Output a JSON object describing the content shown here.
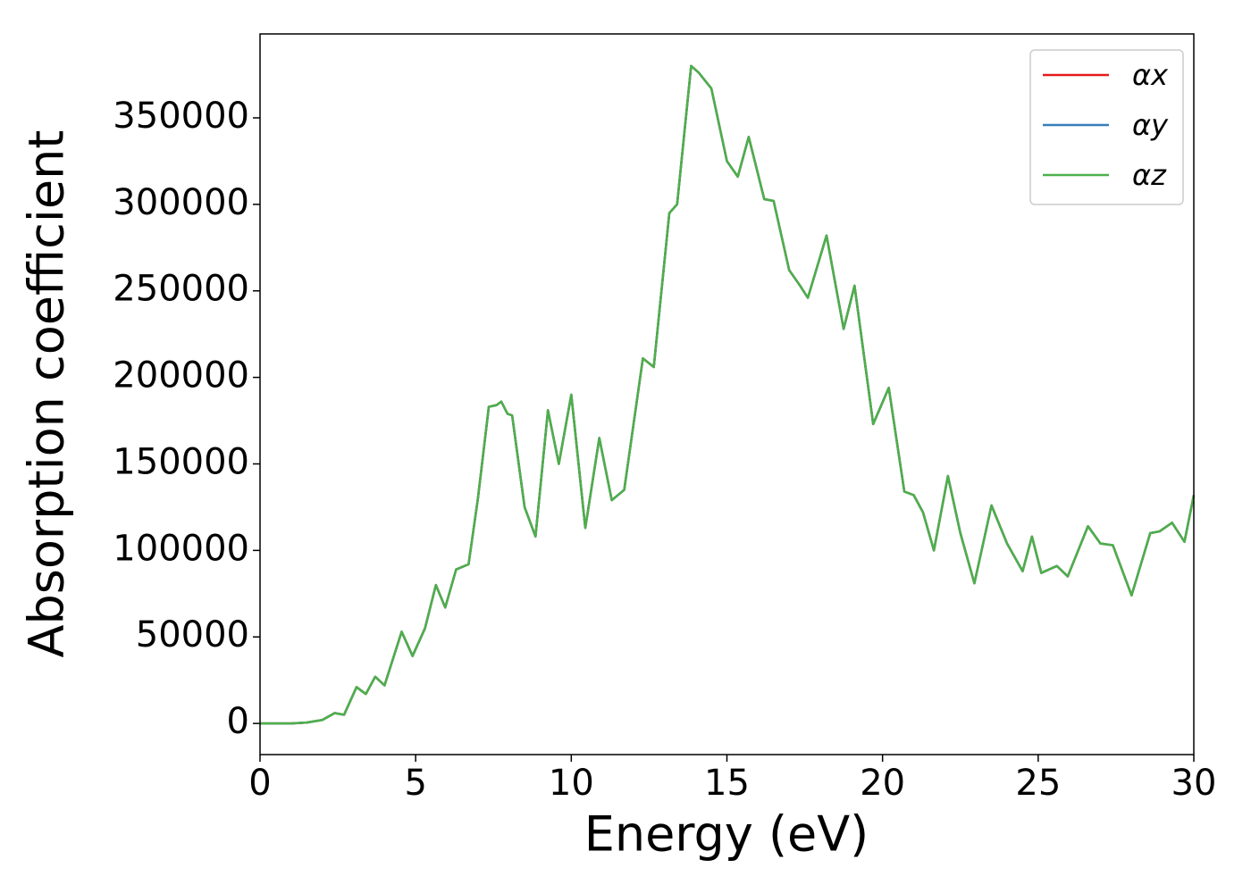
{
  "chart_data": {
    "type": "line",
    "x_label": "Energy (eV)",
    "y_label": "Absorption coefficient",
    "xlim": [
      0,
      30
    ],
    "ylim": [
      -18000,
      398500
    ],
    "xticks": [
      0,
      5,
      10,
      15,
      20,
      25,
      30
    ],
    "yticks": [
      0,
      50000,
      100000,
      150000,
      200000,
      250000,
      300000,
      350000
    ],
    "legend": "upper right",
    "grid": false,
    "x": [
      0,
      0.5,
      1.0,
      1.5,
      2.0,
      2.4,
      2.7,
      3.1,
      3.4,
      3.7,
      4.0,
      4.55,
      4.9,
      5.3,
      5.65,
      5.95,
      6.3,
      6.7,
      7.0,
      7.35,
      7.6,
      7.75,
      7.95,
      8.1,
      8.5,
      8.85,
      9.25,
      9.6,
      10.0,
      10.45,
      10.9,
      11.3,
      11.7,
      12.3,
      12.65,
      13.15,
      13.4,
      13.85,
      14.1,
      14.5,
      15.0,
      15.35,
      15.7,
      16.2,
      16.5,
      17.0,
      17.35,
      17.6,
      18.2,
      18.75,
      19.1,
      19.7,
      20.2,
      20.7,
      21.0,
      21.3,
      21.65,
      22.1,
      22.5,
      22.95,
      23.5,
      24.0,
      24.5,
      24.8,
      25.1,
      25.6,
      25.95,
      26.6,
      27.0,
      27.4,
      28.0,
      28.6,
      28.9,
      29.3,
      29.7,
      30.0
    ],
    "series": [
      {
        "name": "αx",
        "color": "#e41a1c",
        "values": [
          0,
          0,
          0,
          500,
          2000,
          6000,
          5000,
          21000,
          17000,
          27000,
          22000,
          53000,
          39000,
          55000,
          80000,
          67000,
          89000,
          92000,
          130000,
          183000,
          184000,
          186000,
          179000,
          178000,
          125000,
          108000,
          181000,
          150000,
          190000,
          113000,
          165000,
          129000,
          135000,
          211000,
          206000,
          295000,
          300000,
          380000,
          376000,
          367000,
          325000,
          316000,
          339000,
          303000,
          302000,
          262000,
          253000,
          246000,
          282000,
          228000,
          253000,
          173000,
          194000,
          134000,
          132000,
          122000,
          100000,
          143000,
          110000,
          81000,
          126000,
          104000,
          88000,
          108000,
          87000,
          91000,
          85000,
          114000,
          104000,
          103000,
          74000,
          110000,
          111000,
          116000,
          105000,
          132000
        ]
      },
      {
        "name": "αy",
        "color": "#377eb8",
        "values": [
          0,
          0,
          0,
          500,
          2000,
          6000,
          5000,
          21000,
          17000,
          27000,
          22000,
          53000,
          39000,
          55000,
          80000,
          67000,
          89000,
          92000,
          130000,
          183000,
          184000,
          186000,
          179000,
          178000,
          125000,
          108000,
          181000,
          150000,
          190000,
          113000,
          165000,
          129000,
          135000,
          211000,
          206000,
          295000,
          300000,
          380000,
          376000,
          367000,
          325000,
          316000,
          339000,
          303000,
          302000,
          262000,
          253000,
          246000,
          282000,
          228000,
          253000,
          173000,
          194000,
          134000,
          132000,
          122000,
          100000,
          143000,
          110000,
          81000,
          126000,
          104000,
          88000,
          108000,
          87000,
          91000,
          85000,
          114000,
          104000,
          103000,
          74000,
          110000,
          111000,
          116000,
          105000,
          132000
        ]
      },
      {
        "name": "αz",
        "color": "#4daf4a",
        "values": [
          0,
          0,
          0,
          500,
          2000,
          6000,
          5000,
          21000,
          17000,
          27000,
          22000,
          53000,
          39000,
          55000,
          80000,
          67000,
          89000,
          92000,
          130000,
          183000,
          184000,
          186000,
          179000,
          178000,
          125000,
          108000,
          181000,
          150000,
          190000,
          113000,
          165000,
          129000,
          135000,
          211000,
          206000,
          295000,
          300000,
          380000,
          376000,
          367000,
          325000,
          316000,
          339000,
          303000,
          302000,
          262000,
          253000,
          246000,
          282000,
          228000,
          253000,
          173000,
          194000,
          134000,
          132000,
          122000,
          100000,
          143000,
          110000,
          81000,
          126000,
          104000,
          88000,
          108000,
          87000,
          91000,
          85000,
          114000,
          104000,
          103000,
          74000,
          110000,
          111000,
          116000,
          105000,
          132000
        ]
      }
    ]
  }
}
